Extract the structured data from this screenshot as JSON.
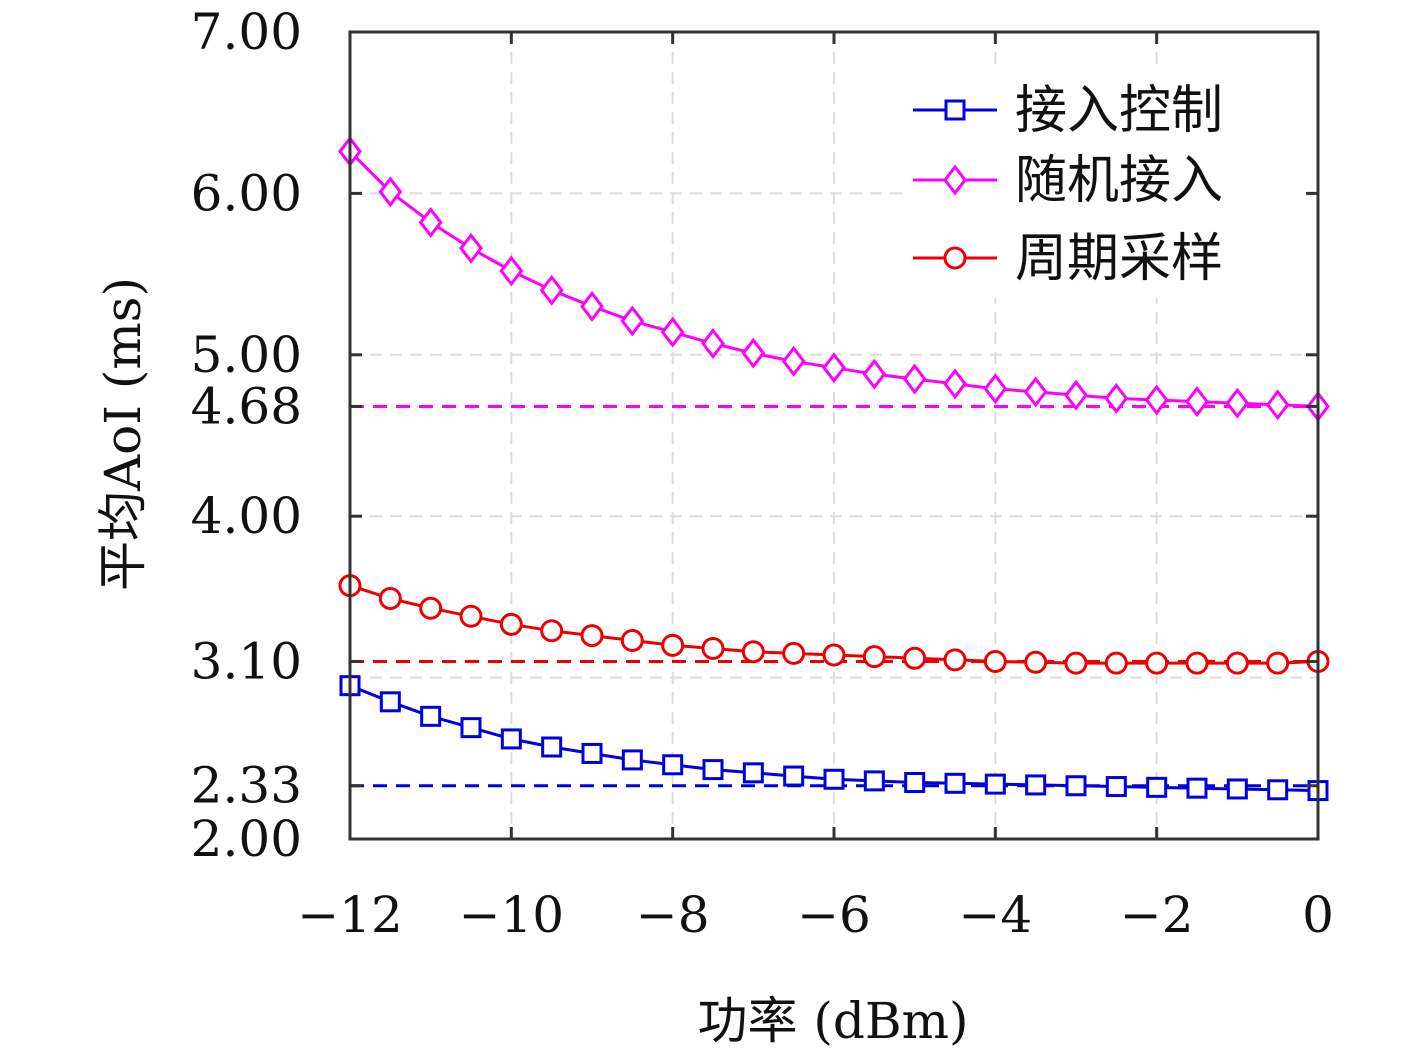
{
  "chart_data": {
    "type": "line",
    "xlabel": "功率 (dBm)",
    "ylabel": "平均AoI (ms)",
    "xlim": [
      -12,
      0
    ],
    "ylim": [
      2.0,
      7.0
    ],
    "xticks": [
      -12,
      -10,
      -8,
      -6,
      -4,
      -2,
      0
    ],
    "xtick_labels": [
      "−12",
      "−10",
      "−8",
      "−6",
      "−4",
      "−2",
      "0"
    ],
    "yticks": [
      2.0,
      2.33,
      3.1,
      4.0,
      4.68,
      5.0,
      6.0,
      7.0
    ],
    "ytick_labels": [
      "2.00",
      "2.33",
      "3.10",
      "4.00",
      "4.68",
      "5.00",
      "6.00",
      "7.00"
    ],
    "grid": true,
    "legend_position": "top-right",
    "x": [
      -12,
      -11.5,
      -11,
      -10.5,
      -10,
      -9.5,
      -9,
      -8.5,
      -8,
      -7.5,
      -7,
      -6.5,
      -6,
      -5.5,
      -5,
      -4.5,
      -4,
      -3.5,
      -3,
      -2.5,
      -2,
      -1.5,
      -1,
      -0.5,
      0
    ],
    "series": [
      {
        "name": "接入控制",
        "color": "#0000e0",
        "marker": "square",
        "values": [
          2.95,
          2.85,
          2.76,
          2.69,
          2.62,
          2.57,
          2.53,
          2.49,
          2.46,
          2.43,
          2.41,
          2.39,
          2.37,
          2.36,
          2.35,
          2.345,
          2.34,
          2.335,
          2.33,
          2.325,
          2.32,
          2.315,
          2.31,
          2.305,
          2.3
        ]
      },
      {
        "name": "随机接入",
        "color": "#ff00ff",
        "marker": "diamond",
        "values": [
          6.26,
          6.01,
          5.82,
          5.66,
          5.52,
          5.4,
          5.3,
          5.21,
          5.14,
          5.07,
          5.01,
          4.96,
          4.92,
          4.88,
          4.85,
          4.82,
          4.79,
          4.77,
          4.75,
          4.73,
          4.72,
          4.71,
          4.7,
          4.69,
          4.68
        ]
      },
      {
        "name": "周期采样",
        "color": "#ee0000",
        "marker": "circle",
        "values": [
          3.57,
          3.49,
          3.43,
          3.38,
          3.33,
          3.29,
          3.26,
          3.23,
          3.2,
          3.18,
          3.16,
          3.15,
          3.14,
          3.13,
          3.12,
          3.11,
          3.1,
          3.095,
          3.09,
          3.09,
          3.09,
          3.09,
          3.09,
          3.09,
          3.1
        ]
      }
    ],
    "reference_lines": [
      {
        "y": 4.68,
        "color": "#ff00ff",
        "style": "dashed"
      },
      {
        "y": 3.1,
        "color": "#ee0000",
        "style": "dashed"
      },
      {
        "y": 2.33,
        "color": "#0000e0",
        "style": "dashed"
      }
    ]
  }
}
